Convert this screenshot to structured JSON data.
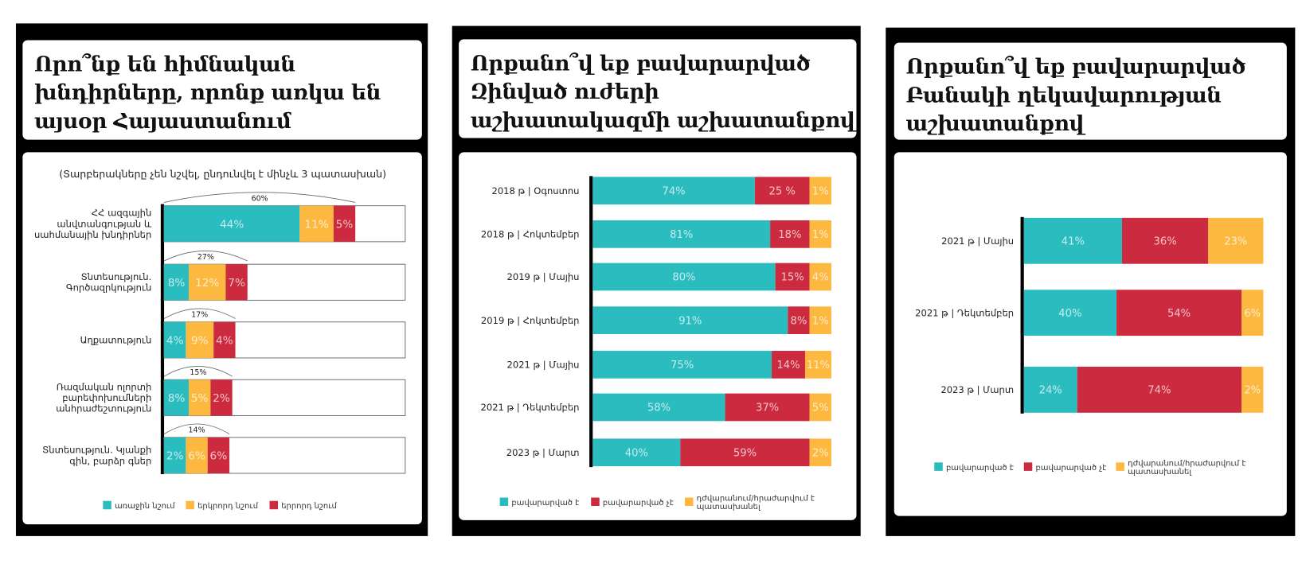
{
  "colors": {
    "teal": "#2bbcc0",
    "red": "#cc2a3e",
    "yellow": "#fdb93f"
  },
  "panels": [
    {
      "title_lines": [
        "Որո՞նք են հիմնական",
        "խնդիրները, որոնք առկա են",
        "այսօր Հայաստանում"
      ]
    },
    {
      "title_lines": [
        "Որքանո՞վ եք բավարարված",
        "Զինված ուժերի",
        "աշխատակազմի աշխատանքով"
      ]
    },
    {
      "title_lines": [
        "Որքանո՞վ եք բավարարված",
        "Բանակի ղեկավարության",
        "աշխատանքով"
      ]
    }
  ],
  "chart_data": [
    {
      "type": "bar",
      "orientation": "horizontal-stacked",
      "subtitle": "(Տարբերակները չեն նշվել, ընդունվել է մինչև 3 պատասխան)",
      "categories": [
        [
          "ՀՀ ազգային",
          "անվտանգության և",
          "սահմանային խնդիրներ"
        ],
        [
          "Տնտեսություն.",
          "Գործազրկություն"
        ],
        [
          "Աղքատություն"
        ],
        [
          "Ռազմական ոլորտի",
          "բարեփոխումների",
          "անհրաժեշտություն"
        ],
        [
          "Տնտեսություն. Կյանքի",
          "գին, բարձր գներ"
        ]
      ],
      "series": [
        {
          "name": "առաջին նշում",
          "color": "#2bbcc0",
          "values": [
            44,
            8,
            4,
            8,
            2
          ]
        },
        {
          "name": "երկրորդ նշում",
          "color": "#fdb93f",
          "values": [
            11,
            12,
            9,
            5,
            6
          ]
        },
        {
          "name": "երրորդ նշում",
          "color": "#cc2a3e",
          "values": [
            5,
            7,
            4,
            2,
            6
          ]
        }
      ],
      "totals": [
        60,
        27,
        17,
        15,
        14
      ],
      "value_suffix": "%",
      "legend": "bottom"
    },
    {
      "type": "bar",
      "orientation": "horizontal-stacked-100",
      "categories": [
        "2018 թ | Օգոստոս",
        "2018 թ | Հոկտեմբեր",
        "2019 թ | Մայիս",
        "2019 թ | Հոկտեմբեր",
        "2021 թ | Մայիս",
        "2021 թ | Դեկտեմբեր",
        "2023 թ | Մարտ"
      ],
      "series": [
        {
          "name": "բավարարված է",
          "color": "#2bbcc0",
          "values": [
            74,
            81,
            80,
            91,
            75,
            58,
            40
          ],
          "labels": [
            "74%",
            "81%",
            "80%",
            "91%",
            "75%",
            "58%",
            "40%"
          ]
        },
        {
          "name": "բավարարված չէ",
          "color": "#cc2a3e",
          "values": [
            25,
            18,
            15,
            8,
            14,
            37,
            59
          ],
          "labels": [
            "25 %",
            "18%",
            "15%",
            "8%",
            "14%",
            "37%",
            "59%"
          ]
        },
        {
          "name": "դժվարանում/հրաժարվում է պատասխանել",
          "color": "#fdb93f",
          "values": [
            1,
            1,
            4,
            1,
            11,
            5,
            2
          ],
          "labels": [
            "1%",
            "1%",
            "4%",
            "1%",
            "11%",
            "5%",
            "2%"
          ]
        }
      ],
      "legend": "bottom"
    },
    {
      "type": "bar",
      "orientation": "horizontal-stacked-100",
      "categories": [
        "2021 թ | Մայիս",
        "2021 թ | Դեկտեմբեր",
        "2023 թ | Մարտ"
      ],
      "series": [
        {
          "name": "բավարարված է",
          "color": "#2bbcc0",
          "values": [
            41,
            40,
            24
          ],
          "labels": [
            "41%",
            "40%",
            "24%"
          ]
        },
        {
          "name": "բավարարված չէ",
          "color": "#cc2a3e",
          "values": [
            36,
            54,
            74
          ],
          "labels": [
            "36%",
            "54%",
            "74%"
          ]
        },
        {
          "name": "դժվարանում/հրաժարվում է պատասխանել",
          "color": "#fdb93f",
          "values": [
            23,
            6,
            2
          ],
          "labels": [
            "23%",
            "6%",
            "2%"
          ]
        }
      ],
      "legend": "bottom"
    }
  ]
}
